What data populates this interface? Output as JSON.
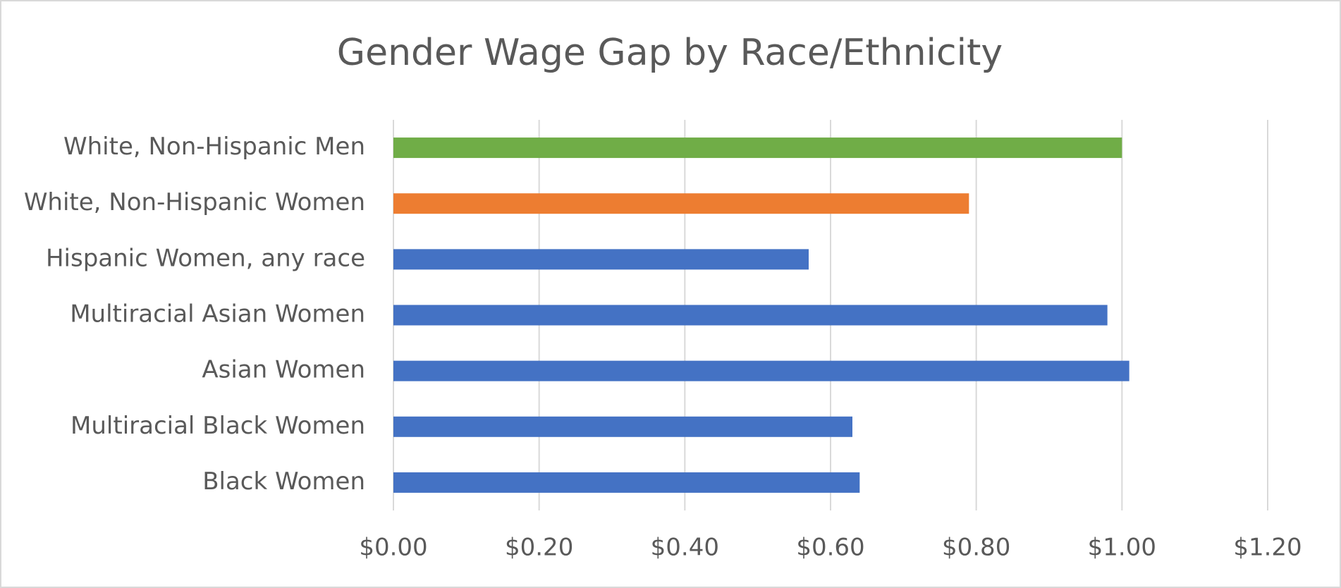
{
  "chart_data": {
    "type": "bar",
    "orientation": "horizontal",
    "title": "Gender Wage Gap by Race/Ethnicity",
    "categories": [
      "White, Non-Hispanic Men",
      "White, Non-Hispanic Women",
      "Hispanic Women, any race",
      "Multiracial Asian Women",
      "Asian Women",
      "Multiracial Black Women",
      "Black Women"
    ],
    "values": [
      1.0,
      0.79,
      0.57,
      0.98,
      1.01,
      0.63,
      0.64
    ],
    "colors": [
      "#70ad47",
      "#ed7d31",
      "#4472c4",
      "#4472c4",
      "#4472c4",
      "#4472c4",
      "#4472c4"
    ],
    "xlim": [
      0,
      1.2
    ],
    "xticks": [
      {
        "value": 0,
        "label": "$0.00"
      },
      {
        "value": 0.2,
        "label": "$0.20"
      },
      {
        "value": 0.4,
        "label": "$0.40"
      },
      {
        "value": 0.6,
        "label": "$0.60"
      },
      {
        "value": 0.8,
        "label": "$0.80"
      },
      {
        "value": 1.0,
        "label": "$1.00"
      },
      {
        "value": 1.2,
        "label": "$1.20"
      }
    ],
    "grid": true
  }
}
